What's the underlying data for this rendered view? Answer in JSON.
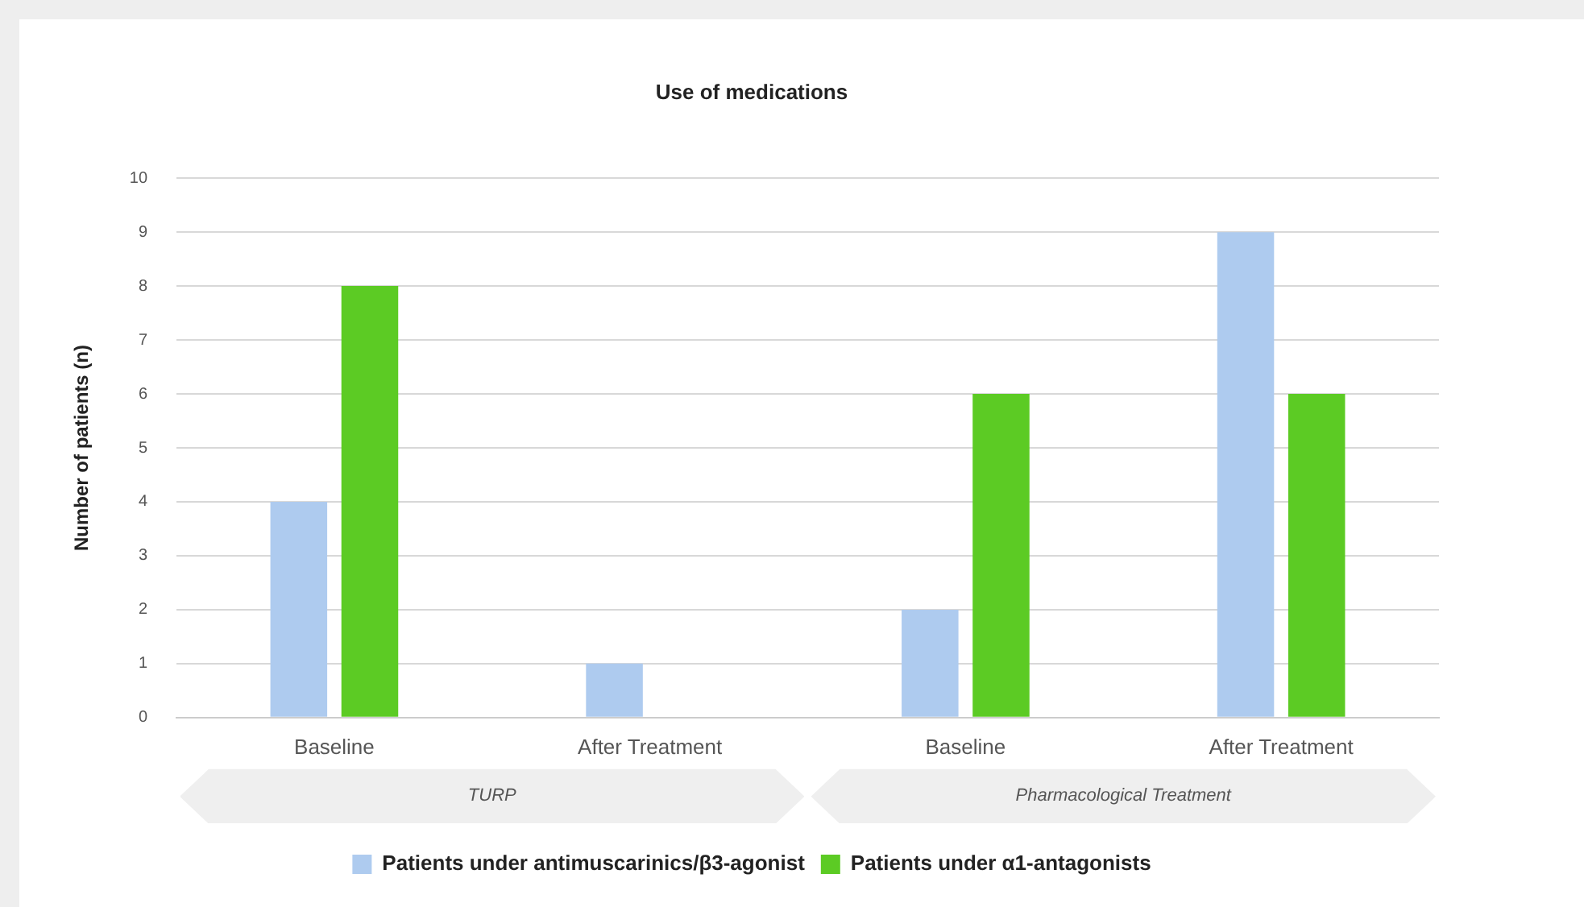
{
  "chart_data": {
    "type": "bar",
    "title": "Use of medications",
    "ylabel": "Number of patients (n)",
    "categories": [
      "Baseline",
      "After Treatment",
      "Baseline",
      "After Treatment"
    ],
    "series": [
      {
        "name": "Patients under antimuscarinics/β3-agonist",
        "color": "#aecbef",
        "values": [
          4,
          1,
          2,
          9
        ]
      },
      {
        "name": "Patients under α1-antagonists",
        "color": "#5ccb24",
        "values": [
          8,
          0,
          6,
          6
        ]
      }
    ],
    "ylim": [
      0,
      10
    ],
    "yticks": [
      0,
      1,
      2,
      3,
      4,
      5,
      6,
      7,
      8,
      9,
      10
    ],
    "grid": "y",
    "legend": "bottom",
    "annotations": [
      "TURP",
      "Pharmacological Treatment"
    ]
  }
}
